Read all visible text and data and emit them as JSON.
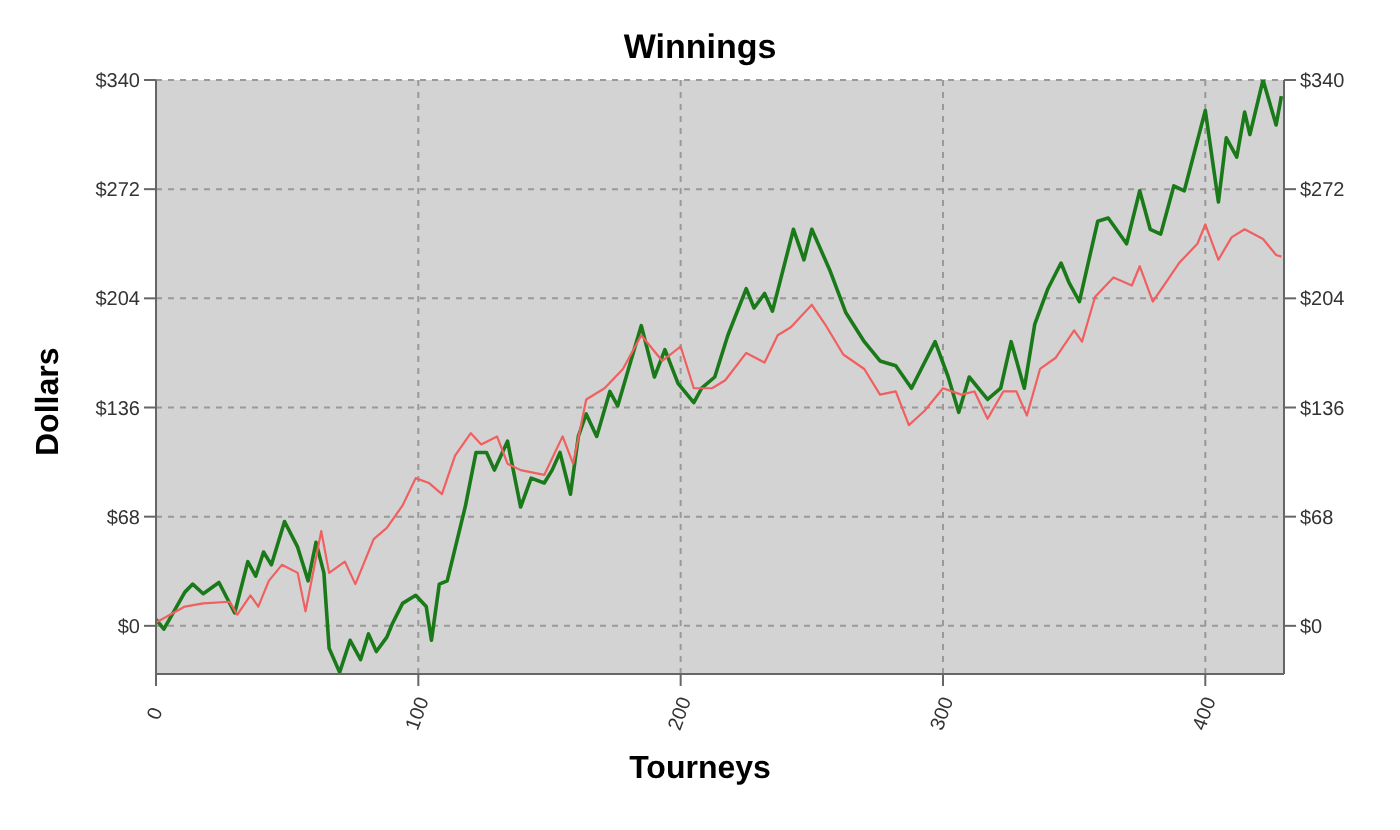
{
  "chart_data": {
    "type": "line",
    "title": "Winnings",
    "xlabel": "Tourneys",
    "ylabel": "Dollars",
    "xlim": [
      0,
      430
    ],
    "xticks": [
      0,
      100,
      200,
      300,
      400
    ],
    "ylim": [
      -30,
      340
    ],
    "yticks": [
      {
        "value": 0,
        "label": "$0"
      },
      {
        "value": 68,
        "label": "$68"
      },
      {
        "value": 136,
        "label": "$136"
      },
      {
        "value": 204,
        "label": "$204"
      },
      {
        "value": 272,
        "label": "$272"
      },
      {
        "value": 340,
        "label": "$340"
      }
    ],
    "y2lim": [
      -30,
      340
    ],
    "y2ticks": [
      {
        "value": 0,
        "label": "$0"
      },
      {
        "value": 68,
        "label": "$68"
      },
      {
        "value": 136,
        "label": "$136"
      },
      {
        "value": 204,
        "label": "$204"
      },
      {
        "value": 272,
        "label": "$272"
      },
      {
        "value": 340,
        "label": "$340"
      }
    ],
    "grid": true,
    "marker": "none",
    "line_style": "solid",
    "series": [
      {
        "color": "#1a7a1a",
        "x": [
          0,
          3,
          11,
          14,
          18,
          24,
          30,
          35,
          38,
          41,
          44,
          49,
          54,
          58,
          61,
          64,
          66,
          70,
          74,
          78,
          81,
          84,
          88,
          90,
          94,
          99,
          103,
          105,
          108,
          111,
          118,
          122,
          126,
          129,
          134,
          139,
          143,
          148,
          151,
          154,
          158,
          161,
          164,
          168,
          173,
          176,
          181,
          185,
          190,
          194,
          199,
          205,
          208,
          213,
          218,
          225,
          228,
          232,
          235,
          243,
          247,
          250,
          257,
          263,
          270,
          276,
          282,
          288,
          297,
          302,
          306,
          310,
          317,
          322,
          326,
          331,
          335,
          340,
          345,
          348,
          352,
          359,
          363,
          370,
          375,
          379,
          383,
          388,
          392,
          400,
          405,
          408,
          412,
          415,
          417,
          422,
          427,
          429
        ],
        "values": [
          4,
          -2,
          21,
          26,
          20,
          27,
          8,
          40,
          31,
          46,
          38,
          65,
          49,
          28,
          52,
          33,
          -14,
          -29,
          -9,
          -21,
          -5,
          -16,
          -7,
          1,
          14,
          19,
          12,
          -9,
          26,
          28,
          75,
          108,
          108,
          97,
          115,
          74,
          92,
          89,
          97,
          108,
          82,
          118,
          132,
          118,
          146,
          137,
          165,
          187,
          155,
          172,
          151,
          139,
          148,
          155,
          181,
          210,
          198,
          207,
          196,
          247,
          228,
          247,
          221,
          195,
          177,
          165,
          162,
          148,
          177,
          155,
          133,
          155,
          141,
          148,
          177,
          148,
          188,
          210,
          226,
          214,
          202,
          252,
          254,
          238,
          271,
          247,
          244,
          274,
          271,
          321,
          264,
          304,
          292,
          320,
          306,
          340,
          312,
          330
        ]
      },
      {
        "color": "#f06060",
        "x": [
          0,
          11,
          18,
          28,
          31,
          36,
          39,
          43,
          48,
          54,
          57,
          63,
          66,
          72,
          76,
          83,
          88,
          94,
          99,
          104,
          109,
          114,
          120,
          124,
          130,
          134,
          139,
          148,
          155,
          159,
          164,
          171,
          178,
          185,
          193,
          200,
          205,
          212,
          217,
          225,
          232,
          237,
          242,
          250,
          255,
          262,
          270,
          276,
          282,
          287,
          293,
          300,
          307,
          312,
          317,
          323,
          328,
          332,
          337,
          343,
          350,
          353,
          358,
          365,
          372,
          375,
          380,
          385,
          390,
          397,
          400,
          405,
          410,
          415,
          422,
          427,
          429
        ],
        "values": [
          2,
          12,
          14,
          15,
          7,
          19,
          12,
          28,
          38,
          33,
          9,
          59,
          33,
          40,
          26,
          54,
          61,
          75,
          92,
          89,
          82,
          106,
          120,
          113,
          118,
          101,
          97,
          94,
          118,
          101,
          141,
          148,
          160,
          181,
          165,
          174,
          148,
          148,
          153,
          170,
          164,
          181,
          186,
          200,
          188,
          169,
          160,
          144,
          146,
          125,
          134,
          148,
          144,
          146,
          129,
          146,
          146,
          131,
          160,
          167,
          184,
          177,
          205,
          217,
          212,
          224,
          202,
          214,
          226,
          238,
          250,
          228,
          242,
          247,
          241,
          231,
          230
        ]
      }
    ]
  }
}
